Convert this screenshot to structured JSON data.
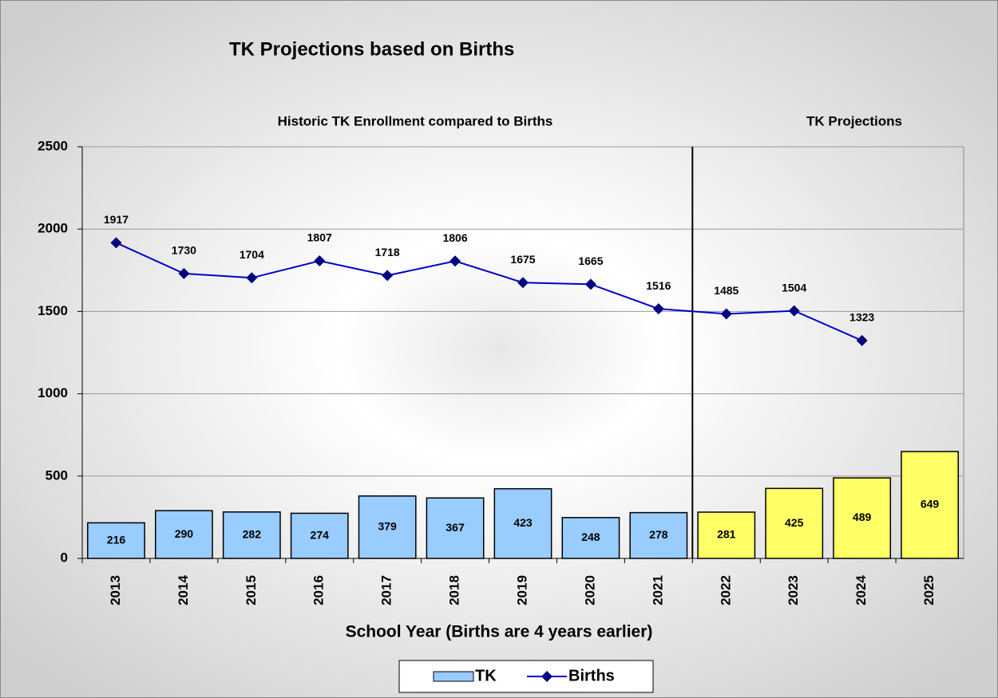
{
  "chart_data": {
    "type": "bar_line",
    "title": "TK Projections based on Births",
    "annotations": [
      "Historic TK Enrollment compared to Births",
      "TK Projections"
    ],
    "x_label": "School Year (Births are 4 years earlier)",
    "categories": [
      "2013",
      "2014",
      "2015",
      "2016",
      "2017",
      "2018",
      "2019",
      "2020",
      "2021",
      "2022",
      "2023",
      "2024",
      "2025"
    ],
    "series": [
      {
        "name": "TK",
        "type": "bar",
        "color": "#99ccff",
        "bar_colors": [
          "#99ccff",
          "#99ccff",
          "#99ccff",
          "#99ccff",
          "#99ccff",
          "#99ccff",
          "#99ccff",
          "#99ccff",
          "#99ccff",
          "#ffff66",
          "#ffff66",
          "#ffff66",
          "#ffff66"
        ],
        "values": [
          216,
          290,
          282,
          274,
          379,
          367,
          423,
          248,
          278,
          281,
          425,
          489,
          649
        ]
      },
      {
        "name": "Births",
        "type": "line",
        "color": "#0000cc",
        "marker_color": "#000080",
        "values": [
          1917,
          1730,
          1704,
          1807,
          1718,
          1806,
          1675,
          1665,
          1516,
          1485,
          1504,
          1323,
          null
        ]
      }
    ],
    "ylim": [
      0,
      2500
    ],
    "yticks": [
      0,
      500,
      1000,
      1500,
      2000,
      2500
    ],
    "grid": true,
    "legend": "bottom"
  }
}
